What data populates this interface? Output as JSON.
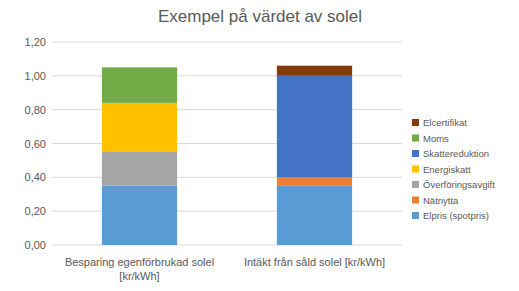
{
  "chart_data": {
    "type": "bar",
    "stacked": true,
    "title": "Exempel på värdet av solel",
    "categories": [
      "Besparing egenförbrukad solel [kr/kWh]",
      "Intäkt från såld solel [kr/kWh]"
    ],
    "series": [
      {
        "name": "Elpris (spotpris)",
        "color": "#5b9bd5",
        "values": [
          0.35,
          0.35
        ]
      },
      {
        "name": "Nätnytta",
        "color": "#ed7d31",
        "values": [
          0,
          0.05
        ]
      },
      {
        "name": "Överföringsavgift",
        "color": "#a5a5a5",
        "values": [
          0.2,
          0
        ]
      },
      {
        "name": "Energiskatt",
        "color": "#ffc000",
        "values": [
          0.29,
          0
        ]
      },
      {
        "name": "Skattereduktion",
        "color": "#4472c4",
        "values": [
          0,
          0.6
        ]
      },
      {
        "name": "Moms",
        "color": "#70ad47",
        "values": [
          0.21,
          0
        ]
      },
      {
        "name": "Elcertifikat",
        "color": "#843c0c",
        "values": [
          0,
          0.06
        ]
      }
    ],
    "ylim": [
      0,
      1.2
    ],
    "yticks": [
      {
        "value": 0,
        "label": "0,00"
      },
      {
        "value": 0.2,
        "label": "0,20"
      },
      {
        "value": 0.4,
        "label": "0,40"
      },
      {
        "value": 0.6,
        "label": "0,60"
      },
      {
        "value": 0.8,
        "label": "0,80"
      },
      {
        "value": 1.0,
        "label": "1,00"
      },
      {
        "value": 1.2,
        "label": "1,20"
      }
    ],
    "grid": true,
    "legend": "right"
  }
}
